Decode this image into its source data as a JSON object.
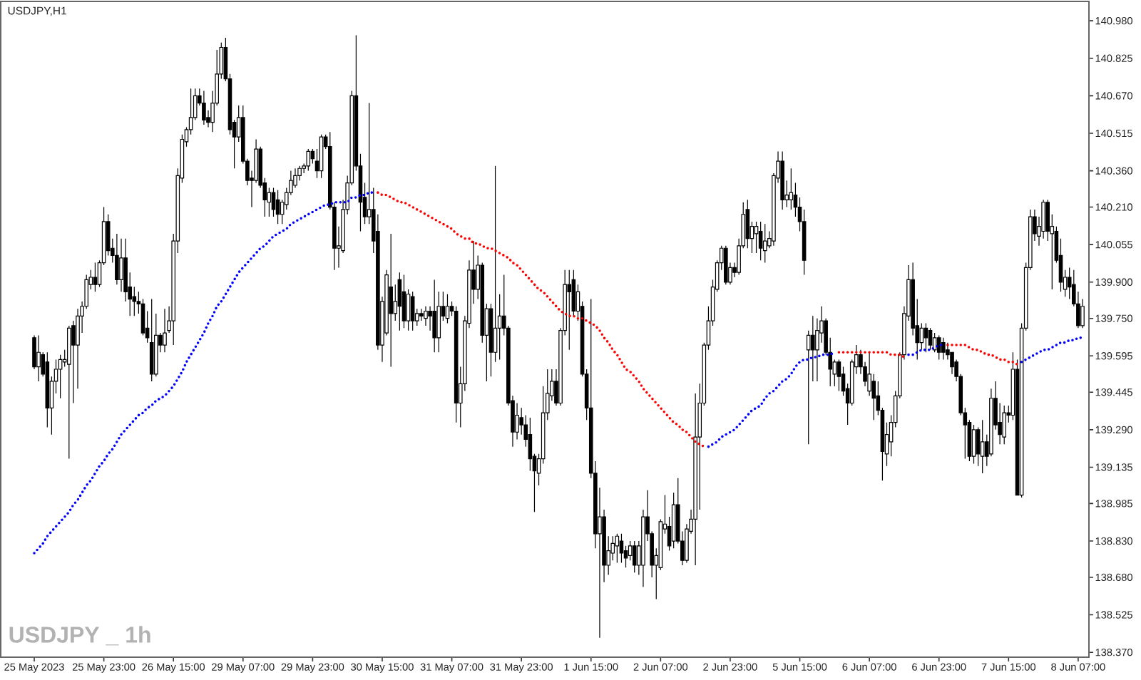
{
  "chart_data": {
    "type": "candlestick",
    "title": "USDJPY,H1",
    "annotations": [
      "USDJPY _ 1h"
    ],
    "categories": [
      "25 May 2023",
      null,
      null,
      null,
      null,
      null,
      null,
      null,
      null,
      null,
      null,
      null,
      null,
      null,
      null,
      null,
      "25 May 23:00",
      null,
      null,
      null,
      null,
      null,
      null,
      null,
      null,
      null,
      null,
      null,
      null,
      null,
      null,
      null,
      "26 May 15:00",
      null,
      null,
      null,
      null,
      null,
      null,
      null,
      null,
      null,
      null,
      null,
      null,
      null,
      null,
      null,
      "29 May 07:00",
      null,
      null,
      null,
      null,
      null,
      null,
      null,
      null,
      null,
      null,
      null,
      null,
      null,
      null,
      null,
      "29 May 23:00",
      null,
      null,
      null,
      null,
      null,
      null,
      null,
      null,
      null,
      null,
      null,
      null,
      null,
      null,
      null,
      "30 May 15:00",
      null,
      null,
      null,
      null,
      null,
      null,
      null,
      null,
      null,
      null,
      null,
      null,
      null,
      null,
      null,
      "31 May 07:00",
      null,
      null,
      null,
      null,
      null,
      null,
      null,
      null,
      null,
      null,
      null,
      null,
      null,
      null,
      null,
      "31 May 23:00",
      null,
      null,
      null,
      null,
      null,
      null,
      null,
      null,
      null,
      null,
      null,
      null,
      null,
      null,
      null,
      "1 Jun 15:00",
      null,
      null,
      null,
      null,
      null,
      null,
      null,
      null,
      null,
      null,
      null,
      null,
      null,
      null,
      null,
      "2 Jun 07:00",
      null,
      null,
      null,
      null,
      null,
      null,
      null,
      null,
      null,
      null,
      null,
      null,
      null,
      null,
      null,
      "2 Jun 23:00",
      null,
      null,
      null,
      null,
      null,
      null,
      null,
      null,
      null,
      null,
      null,
      null,
      null,
      null,
      null,
      "5 Jun 15:00",
      null,
      null,
      null,
      null,
      null,
      null,
      null,
      null,
      null,
      null,
      null,
      null,
      null,
      null,
      null,
      "6 Jun 07:00",
      null,
      null,
      null,
      null,
      null,
      null,
      null,
      null,
      null,
      null,
      null,
      null,
      null,
      null,
      null,
      "6 Jun 23:00",
      null,
      null,
      null,
      null,
      null,
      null,
      null,
      null,
      null,
      null,
      null,
      null,
      null,
      null,
      null,
      "7 Jun 15:00",
      null,
      null,
      null,
      null,
      null,
      null,
      null,
      null,
      null,
      null,
      null,
      null,
      null,
      null,
      null,
      "8 Jun 07:00",
      null
    ],
    "ohlc": [
      [
        139.67,
        139.68,
        139.54,
        139.55
      ],
      [
        139.55,
        139.68,
        139.49,
        139.61
      ],
      [
        139.6,
        139.61,
        139.51,
        139.52
      ],
      [
        139.57,
        139.61,
        139.3,
        139.38
      ],
      [
        139.38,
        139.51,
        139.27,
        139.49
      ],
      [
        139.49,
        139.58,
        139.44,
        139.54
      ],
      [
        139.54,
        139.6,
        139.42,
        139.58
      ],
      [
        139.57,
        139.62,
        139.55,
        139.58
      ],
      [
        139.56,
        139.72,
        139.17,
        139.71
      ],
      [
        139.72,
        139.74,
        139.4,
        139.64
      ],
      [
        139.64,
        139.79,
        139.46,
        139.76
      ],
      [
        139.76,
        139.82,
        139.69,
        139.8
      ],
      [
        139.8,
        139.93,
        139.79,
        139.91
      ],
      [
        139.89,
        139.95,
        139.87,
        139.92
      ],
      [
        139.92,
        139.98,
        139.86,
        139.89
      ],
      [
        139.89,
        139.99,
        139.88,
        139.98
      ],
      [
        139.98,
        140.21,
        139.97,
        140.15
      ],
      [
        140.15,
        140.18,
        140.01,
        140.03
      ],
      [
        140.04,
        140.08,
        139.98,
        140.01
      ],
      [
        140.01,
        140.1,
        139.89,
        139.91
      ],
      [
        139.91,
        140.08,
        139.86,
        140.0
      ],
      [
        140.0,
        140.08,
        139.82,
        139.86
      ],
      [
        139.88,
        139.94,
        139.76,
        139.83
      ],
      [
        139.84,
        139.88,
        139.76,
        139.82
      ],
      [
        139.82,
        139.86,
        139.77,
        139.81
      ],
      [
        139.81,
        139.83,
        139.68,
        139.69
      ],
      [
        139.71,
        139.78,
        139.65,
        139.67
      ],
      [
        139.65,
        139.83,
        139.49,
        139.52
      ],
      [
        139.52,
        139.77,
        139.51,
        139.68
      ],
      [
        139.68,
        139.69,
        139.61,
        139.64
      ],
      [
        139.64,
        139.79,
        139.61,
        139.69
      ],
      [
        139.7,
        139.8,
        139.69,
        139.74
      ],
      [
        139.74,
        140.1,
        139.64,
        140.07
      ],
      [
        140.07,
        140.37,
        140.02,
        140.34
      ],
      [
        140.33,
        140.51,
        140.31,
        140.49
      ],
      [
        140.48,
        140.54,
        140.46,
        140.53
      ],
      [
        140.53,
        140.7,
        140.51,
        140.58
      ],
      [
        140.58,
        140.7,
        140.57,
        140.67
      ],
      [
        140.67,
        140.7,
        140.63,
        140.64
      ],
      [
        140.64,
        140.69,
        140.55,
        140.57
      ],
      [
        140.58,
        140.61,
        140.54,
        140.56
      ],
      [
        140.56,
        140.69,
        140.52,
        140.64
      ],
      [
        140.64,
        140.86,
        140.63,
        140.76
      ],
      [
        140.76,
        140.89,
        140.74,
        140.87
      ],
      [
        140.87,
        140.91,
        140.73,
        140.74
      ],
      [
        140.74,
        140.76,
        140.51,
        140.53
      ],
      [
        140.56,
        140.57,
        140.37,
        140.5
      ],
      [
        140.5,
        140.63,
        140.48,
        140.58
      ],
      [
        140.58,
        140.63,
        140.39,
        140.4
      ],
      [
        140.4,
        140.41,
        140.3,
        140.32
      ],
      [
        140.33,
        140.36,
        140.21,
        140.32
      ],
      [
        140.32,
        140.49,
        140.31,
        140.45
      ],
      [
        140.45,
        140.46,
        140.29,
        140.3
      ],
      [
        140.31,
        140.33,
        140.17,
        140.24
      ],
      [
        140.23,
        140.29,
        140.17,
        140.27
      ],
      [
        140.27,
        140.29,
        140.17,
        140.2
      ],
      [
        140.24,
        140.28,
        140.14,
        140.18
      ],
      [
        140.18,
        140.24,
        140.14,
        140.23
      ],
      [
        140.22,
        140.29,
        140.2,
        140.27
      ],
      [
        140.27,
        140.36,
        140.26,
        140.32
      ],
      [
        140.3,
        140.37,
        140.29,
        140.34
      ],
      [
        140.34,
        140.38,
        140.32,
        140.37
      ],
      [
        140.37,
        140.39,
        140.35,
        140.38
      ],
      [
        140.38,
        140.45,
        140.36,
        140.44
      ],
      [
        140.44,
        140.45,
        140.39,
        140.41
      ],
      [
        140.4,
        140.45,
        140.33,
        140.36
      ],
      [
        140.36,
        140.51,
        140.33,
        140.5
      ],
      [
        140.5,
        140.51,
        140.45,
        140.46
      ],
      [
        140.46,
        140.52,
        140.2,
        140.21
      ],
      [
        140.21,
        140.23,
        139.95,
        140.04
      ],
      [
        140.04,
        140.13,
        139.96,
        140.05
      ],
      [
        140.03,
        140.24,
        140.02,
        140.2
      ],
      [
        140.2,
        140.34,
        140.18,
        140.31
      ],
      [
        140.31,
        140.69,
        140.3,
        140.67
      ],
      [
        140.67,
        140.92,
        140.36,
        140.38
      ],
      [
        140.38,
        140.43,
        140.11,
        140.23
      ],
      [
        140.25,
        140.31,
        140.14,
        140.17
      ],
      [
        140.17,
        140.64,
        140.14,
        140.2
      ],
      [
        140.2,
        140.29,
        140.02,
        140.07
      ],
      [
        140.11,
        140.18,
        139.62,
        139.64
      ],
      [
        139.64,
        139.84,
        139.57,
        139.82
      ],
      [
        139.69,
        139.95,
        139.68,
        139.93
      ],
      [
        139.88,
        140.1,
        139.55,
        139.77
      ],
      [
        139.77,
        139.89,
        139.74,
        139.82
      ],
      [
        139.91,
        139.94,
        139.7,
        139.8
      ],
      [
        139.86,
        139.93,
        139.71,
        139.74
      ],
      [
        139.74,
        139.87,
        139.7,
        139.85
      ],
      [
        139.84,
        139.86,
        139.7,
        139.74
      ],
      [
        139.74,
        139.79,
        139.72,
        139.77
      ],
      [
        139.77,
        139.79,
        139.74,
        139.76
      ],
      [
        139.75,
        139.8,
        139.72,
        139.78
      ],
      [
        139.78,
        139.8,
        139.7,
        139.76
      ],
      [
        139.78,
        139.91,
        139.61,
        139.67
      ],
      [
        139.67,
        139.86,
        139.61,
        139.8
      ],
      [
        139.8,
        139.86,
        139.74,
        139.76
      ],
      [
        139.75,
        139.85,
        139.73,
        139.8
      ],
      [
        139.8,
        139.82,
        139.76,
        139.78
      ],
      [
        139.78,
        139.8,
        139.32,
        139.4
      ],
      [
        139.4,
        139.55,
        139.3,
        139.48
      ],
      [
        139.48,
        139.76,
        139.45,
        139.74
      ],
      [
        139.73,
        139.99,
        139.71,
        139.95
      ],
      [
        139.95,
        140.07,
        139.81,
        139.87
      ],
      [
        139.87,
        140.01,
        139.83,
        139.97
      ],
      [
        139.97,
        139.98,
        139.65,
        139.68
      ],
      [
        139.68,
        139.81,
        139.49,
        139.79
      ],
      [
        139.79,
        139.81,
        139.51,
        139.61
      ],
      [
        139.61,
        140.38,
        139.57,
        139.71
      ],
      [
        139.71,
        139.85,
        139.58,
        139.76
      ],
      [
        139.76,
        139.93,
        139.68,
        139.71
      ],
      [
        139.71,
        139.72,
        139.39,
        139.4
      ],
      [
        139.41,
        139.43,
        139.22,
        139.28
      ],
      [
        139.28,
        139.4,
        139.25,
        139.35
      ],
      [
        139.34,
        139.38,
        139.27,
        139.31
      ],
      [
        139.31,
        139.35,
        139.22,
        139.25
      ],
      [
        139.27,
        139.34,
        139.12,
        139.17
      ],
      [
        139.18,
        139.19,
        138.95,
        139.12
      ],
      [
        139.11,
        139.19,
        139.06,
        139.17
      ],
      [
        139.17,
        139.47,
        139.15,
        139.36
      ],
      [
        139.36,
        139.54,
        139.33,
        139.44
      ],
      [
        139.43,
        139.54,
        139.41,
        139.49
      ],
      [
        139.49,
        139.54,
        139.39,
        139.4
      ],
      [
        139.4,
        139.71,
        139.39,
        139.7
      ],
      [
        139.7,
        139.95,
        139.68,
        139.89
      ],
      [
        139.89,
        139.95,
        139.62,
        139.86
      ],
      [
        139.91,
        139.95,
        139.76,
        139.78
      ],
      [
        139.78,
        139.89,
        139.74,
        139.86
      ],
      [
        139.8,
        139.82,
        139.51,
        139.52
      ],
      [
        139.52,
        139.54,
        139.33,
        139.38
      ],
      [
        139.38,
        139.83,
        139.09,
        139.11
      ],
      [
        139.11,
        139.16,
        138.8,
        138.86
      ],
      [
        138.86,
        139.05,
        138.43,
        138.93
      ],
      [
        138.93,
        138.96,
        138.66,
        138.73
      ],
      [
        138.73,
        138.85,
        138.69,
        138.79
      ],
      [
        138.78,
        138.85,
        138.75,
        138.82
      ],
      [
        138.81,
        138.86,
        138.74,
        138.85
      ],
      [
        138.83,
        138.86,
        138.74,
        138.78
      ],
      [
        138.79,
        138.81,
        138.72,
        138.76
      ],
      [
        138.77,
        138.83,
        138.75,
        138.81
      ],
      [
        138.81,
        138.83,
        138.7,
        138.73
      ],
      [
        138.73,
        138.83,
        138.69,
        138.81
      ],
      [
        138.73,
        138.96,
        138.64,
        138.93
      ],
      [
        138.93,
        139.04,
        138.83,
        138.86
      ],
      [
        138.86,
        138.87,
        138.68,
        138.73
      ],
      [
        138.73,
        138.8,
        138.59,
        138.77
      ],
      [
        138.72,
        138.92,
        138.71,
        138.91
      ],
      [
        138.88,
        139.02,
        138.86,
        138.9
      ],
      [
        138.89,
        138.93,
        138.79,
        138.81
      ],
      [
        138.83,
        139.03,
        138.8,
        138.98
      ],
      [
        138.98,
        139.09,
        138.82,
        138.83
      ],
      [
        138.83,
        138.87,
        138.73,
        138.75
      ],
      [
        138.75,
        138.9,
        138.74,
        138.88
      ],
      [
        138.87,
        138.96,
        138.86,
        138.92
      ],
      [
        138.92,
        139.44,
        138.73,
        139.26
      ],
      [
        139.26,
        139.48,
        138.96,
        139.4
      ],
      [
        139.4,
        139.65,
        139.39,
        139.64
      ],
      [
        139.64,
        139.8,
        139.62,
        139.74
      ],
      [
        139.74,
        139.91,
        139.72,
        139.88
      ],
      [
        139.87,
        139.99,
        139.86,
        139.98
      ],
      [
        139.98,
        140.05,
        139.95,
        140.04
      ],
      [
        140.04,
        140.05,
        139.89,
        139.9
      ],
      [
        139.9,
        139.98,
        139.89,
        139.96
      ],
      [
        139.96,
        139.98,
        139.92,
        139.94
      ],
      [
        139.94,
        140.08,
        139.93,
        140.05
      ],
      [
        140.05,
        140.23,
        140.04,
        140.18
      ],
      [
        140.2,
        140.24,
        140.04,
        140.08
      ],
      [
        140.08,
        140.15,
        140.02,
        140.13
      ],
      [
        140.1,
        140.15,
        140.02,
        140.13
      ],
      [
        140.11,
        140.15,
        139.99,
        140.04
      ],
      [
        140.03,
        140.14,
        139.98,
        140.07
      ],
      [
        140.05,
        140.11,
        140.04,
        140.08
      ],
      [
        140.07,
        140.35,
        140.05,
        140.34
      ],
      [
        140.33,
        140.44,
        140.31,
        140.4
      ],
      [
        140.4,
        140.44,
        140.2,
        140.24
      ],
      [
        140.24,
        140.32,
        140.21,
        140.26
      ],
      [
        140.24,
        140.37,
        140.2,
        140.27
      ],
      [
        140.26,
        140.31,
        140.17,
        140.21
      ],
      [
        140.21,
        140.25,
        140.11,
        140.15
      ],
      [
        140.15,
        140.2,
        139.93,
        139.99
      ],
      [
        139.62,
        139.7,
        139.23,
        139.68
      ],
      [
        139.68,
        139.76,
        139.49,
        139.62
      ],
      [
        139.62,
        139.75,
        139.49,
        139.7
      ],
      [
        139.69,
        139.8,
        139.65,
        139.74
      ],
      [
        139.74,
        139.75,
        139.6,
        139.61
      ],
      [
        139.61,
        139.67,
        139.47,
        139.54
      ],
      [
        139.52,
        139.58,
        139.47,
        139.57
      ],
      [
        139.57,
        139.58,
        139.45,
        139.51
      ],
      [
        139.52,
        139.55,
        139.43,
        139.45
      ],
      [
        139.46,
        139.48,
        139.31,
        139.4
      ],
      [
        139.4,
        139.58,
        139.39,
        139.57
      ],
      [
        139.55,
        139.64,
        139.52,
        139.6
      ],
      [
        139.6,
        139.62,
        139.52,
        139.55
      ],
      [
        139.55,
        139.57,
        139.47,
        139.49
      ],
      [
        139.45,
        139.61,
        139.43,
        139.52
      ],
      [
        139.49,
        139.52,
        139.33,
        139.42
      ],
      [
        139.43,
        139.49,
        139.35,
        139.37
      ],
      [
        139.37,
        139.38,
        139.08,
        139.2
      ],
      [
        139.19,
        139.32,
        139.14,
        139.27
      ],
      [
        139.24,
        139.35,
        139.18,
        139.32
      ],
      [
        139.32,
        139.45,
        139.3,
        139.43
      ],
      [
        139.43,
        139.61,
        139.42,
        139.6
      ],
      [
        139.6,
        139.8,
        139.58,
        139.77
      ],
      [
        139.76,
        139.97,
        139.74,
        139.91
      ],
      [
        139.91,
        139.98,
        139.68,
        139.71
      ],
      [
        139.72,
        139.83,
        139.58,
        139.65
      ],
      [
        139.65,
        139.73,
        139.62,
        139.71
      ],
      [
        139.71,
        139.73,
        139.61,
        139.67
      ],
      [
        139.7,
        139.71,
        139.62,
        139.64
      ],
      [
        139.62,
        139.69,
        139.61,
        139.67
      ],
      [
        139.67,
        139.68,
        139.58,
        139.61
      ],
      [
        139.65,
        139.67,
        139.58,
        139.61
      ],
      [
        139.62,
        139.65,
        139.58,
        139.6
      ],
      [
        139.61,
        139.61,
        139.52,
        139.55
      ],
      [
        139.57,
        139.58,
        139.49,
        139.51
      ],
      [
        139.51,
        139.52,
        139.35,
        139.36
      ],
      [
        139.36,
        139.38,
        139.17,
        139.31
      ],
      [
        139.32,
        139.33,
        139.16,
        139.18
      ],
      [
        139.18,
        139.31,
        139.15,
        139.29
      ],
      [
        139.29,
        139.3,
        139.14,
        139.19
      ],
      [
        139.18,
        139.33,
        139.11,
        139.24
      ],
      [
        139.24,
        139.27,
        139.14,
        139.18
      ],
      [
        139.19,
        139.46,
        139.18,
        139.42
      ],
      [
        139.42,
        139.49,
        139.29,
        139.31
      ],
      [
        139.32,
        139.4,
        139.23,
        139.27
      ],
      [
        139.26,
        139.39,
        139.23,
        139.36
      ],
      [
        139.36,
        139.39,
        139.32,
        139.35
      ],
      [
        139.35,
        139.61,
        139.33,
        139.54
      ],
      [
        139.54,
        139.58,
        139.02,
        139.02
      ],
      [
        139.02,
        139.73,
        139.01,
        139.71
      ],
      [
        139.71,
        139.98,
        139.7,
        139.96
      ],
      [
        139.96,
        140.2,
        139.95,
        140.17
      ],
      [
        140.17,
        140.2,
        140.07,
        140.1
      ],
      [
        140.09,
        140.17,
        140.05,
        140.13
      ],
      [
        140.11,
        140.24,
        140.08,
        140.23
      ],
      [
        140.23,
        140.24,
        140.07,
        140.11
      ],
      [
        140.1,
        140.18,
        139.87,
        140.13
      ],
      [
        140.11,
        140.13,
        139.98,
        139.99
      ],
      [
        140.01,
        140.08,
        139.86,
        139.9
      ],
      [
        139.87,
        139.95,
        139.84,
        139.92
      ],
      [
        139.92,
        139.96,
        139.83,
        139.88
      ],
      [
        139.89,
        139.95,
        139.8,
        139.81
      ],
      [
        139.81,
        139.86,
        139.71,
        139.72
      ],
      [
        139.72,
        139.83,
        139.71,
        139.8
      ]
    ],
    "series": [
      {
        "type": "line",
        "color": "#0000ff",
        "values": [
          138.78,
          138.8,
          138.82,
          138.85,
          138.87,
          138.89,
          138.91,
          138.93,
          138.95,
          138.98,
          139.0,
          139.03,
          139.06,
          139.08,
          139.11,
          139.14,
          139.16,
          139.19,
          139.21,
          139.24,
          139.27,
          139.29,
          139.31,
          139.33,
          139.35,
          139.36,
          139.38,
          139.39,
          139.41,
          139.42,
          139.43,
          139.45,
          139.47,
          139.5,
          139.53,
          139.57,
          139.6,
          139.63,
          139.66,
          139.69,
          139.73,
          139.76,
          139.8,
          139.82,
          139.85,
          139.88,
          139.91,
          139.94,
          139.96,
          139.98,
          140.0,
          140.02,
          140.04,
          140.05,
          140.07,
          140.09,
          140.1,
          140.11,
          140.12,
          140.14,
          140.15,
          140.16,
          140.17,
          140.18,
          140.19,
          140.2,
          140.21,
          140.22,
          140.22,
          140.23,
          140.23,
          140.23,
          140.23,
          140.25,
          140.25,
          140.26,
          140.26,
          140.27,
          140.27,
          null,
          null,
          null,
          null,
          null,
          null,
          null,
          null,
          null,
          null,
          null,
          null,
          null,
          null,
          null,
          null,
          null,
          null,
          null,
          null,
          null,
          null,
          null,
          null,
          null,
          null,
          null,
          null,
          null,
          null,
          null,
          null,
          null,
          null,
          null,
          null,
          null,
          null,
          null,
          null,
          null,
          null,
          null,
          null,
          null,
          null,
          null,
          null,
          null,
          null,
          null,
          null,
          null,
          null,
          null,
          null,
          null,
          null,
          null,
          null,
          null,
          null,
          null,
          null,
          null,
          null,
          null,
          null,
          null,
          null,
          null,
          null,
          null,
          null,
          null,
          null,
          139.22,
          139.23,
          139.24,
          139.26,
          139.27,
          139.28,
          139.29,
          139.31,
          139.33,
          139.35,
          139.37,
          139.38,
          139.39,
          139.42,
          139.44,
          139.45,
          139.47,
          139.49,
          139.5,
          139.52,
          139.55,
          139.57,
          139.58,
          139.58,
          139.59,
          139.59,
          139.6,
          139.6,
          139.6,
          139.61,
          null,
          null,
          null,
          null,
          null,
          null,
          null,
          null,
          null,
          null,
          null,
          null,
          null,
          null,
          null,
          null,
          139.6,
          139.6,
          139.61,
          139.62,
          139.62,
          139.62,
          139.63,
          139.64,
          139.64,
          null,
          null,
          null,
          null,
          null,
          null,
          null,
          null,
          null,
          null,
          null,
          null,
          null,
          null,
          null,
          null,
          null,
          139.57,
          139.58,
          139.59,
          139.6,
          139.61,
          139.62,
          139.62,
          139.63,
          139.64,
          139.65,
          139.65,
          139.66,
          139.66,
          139.67,
          139.67
        ]
      },
      {
        "type": "line",
        "color": "#ff0000",
        "values": [
          null,
          null,
          null,
          null,
          null,
          null,
          null,
          null,
          null,
          null,
          null,
          null,
          null,
          null,
          null,
          null,
          null,
          null,
          null,
          null,
          null,
          null,
          null,
          null,
          null,
          null,
          null,
          null,
          null,
          null,
          null,
          null,
          null,
          null,
          null,
          null,
          null,
          null,
          null,
          null,
          null,
          null,
          null,
          null,
          null,
          null,
          null,
          null,
          null,
          null,
          null,
          null,
          null,
          null,
          null,
          null,
          null,
          null,
          null,
          null,
          null,
          null,
          null,
          null,
          null,
          null,
          null,
          null,
          null,
          null,
          null,
          null,
          null,
          null,
          null,
          null,
          null,
          null,
          null,
          140.27,
          140.26,
          140.26,
          140.25,
          140.24,
          140.23,
          140.23,
          140.22,
          140.21,
          140.2,
          140.19,
          140.18,
          140.17,
          140.16,
          140.15,
          140.14,
          140.13,
          140.12,
          140.1,
          140.09,
          140.08,
          140.08,
          140.06,
          140.06,
          140.05,
          140.04,
          140.04,
          140.03,
          140.02,
          140.01,
          140.0,
          139.98,
          139.97,
          139.95,
          139.93,
          139.91,
          139.89,
          139.87,
          139.86,
          139.84,
          139.82,
          139.8,
          139.78,
          139.77,
          139.76,
          139.76,
          139.75,
          139.75,
          139.74,
          139.73,
          139.72,
          139.7,
          139.67,
          139.65,
          139.62,
          139.6,
          139.57,
          139.54,
          139.53,
          139.51,
          139.49,
          139.46,
          139.44,
          139.42,
          139.4,
          139.38,
          139.36,
          139.34,
          139.32,
          139.31,
          139.29,
          139.28,
          139.26,
          139.24,
          139.23,
          139.22,
          null,
          null,
          null,
          null,
          null,
          null,
          null,
          null,
          null,
          null,
          null,
          null,
          null,
          null,
          null,
          null,
          null,
          null,
          null,
          null,
          null,
          null,
          null,
          null,
          null,
          null,
          null,
          null,
          null,
          null,
          139.61,
          139.61,
          139.61,
          139.61,
          139.61,
          139.61,
          139.61,
          139.61,
          139.61,
          139.61,
          139.61,
          139.61,
          139.6,
          139.6,
          139.6,
          139.59,
          null,
          null,
          null,
          null,
          null,
          null,
          null,
          null,
          null,
          139.64,
          139.64,
          139.64,
          139.64,
          139.64,
          139.63,
          139.62,
          139.62,
          139.61,
          139.6,
          139.6,
          139.59,
          139.58,
          139.58,
          139.57,
          139.57,
          139.56,
          null,
          null,
          null,
          null,
          null,
          null,
          null,
          null,
          null,
          null,
          null,
          null,
          null,
          null,
          null
        ]
      }
    ],
    "line_style": "dotted",
    "ylim": [
      138.35,
      141.06
    ],
    "yticks": [
      {
        "value": 140.98,
        "label": "140.980"
      },
      {
        "value": 140.825,
        "label": "140.825"
      },
      {
        "value": 140.67,
        "label": "140.670"
      },
      {
        "value": 140.515,
        "label": "140.515"
      },
      {
        "value": 140.36,
        "label": "140.360"
      },
      {
        "value": 140.21,
        "label": "140.210"
      },
      {
        "value": 140.055,
        "label": "140.055"
      },
      {
        "value": 139.9,
        "label": "139.900"
      },
      {
        "value": 139.75,
        "label": "139.750"
      },
      {
        "value": 139.595,
        "label": "139.595"
      },
      {
        "value": 139.445,
        "label": "139.445"
      },
      {
        "value": 139.29,
        "label": "139.290"
      },
      {
        "value": 139.135,
        "label": "139.135"
      },
      {
        "value": 138.985,
        "label": "138.985"
      },
      {
        "value": 138.83,
        "label": "138.830"
      },
      {
        "value": 138.68,
        "label": "138.680"
      },
      {
        "value": 138.525,
        "label": "138.525"
      },
      {
        "value": 138.37,
        "label": "138.370"
      }
    ]
  }
}
